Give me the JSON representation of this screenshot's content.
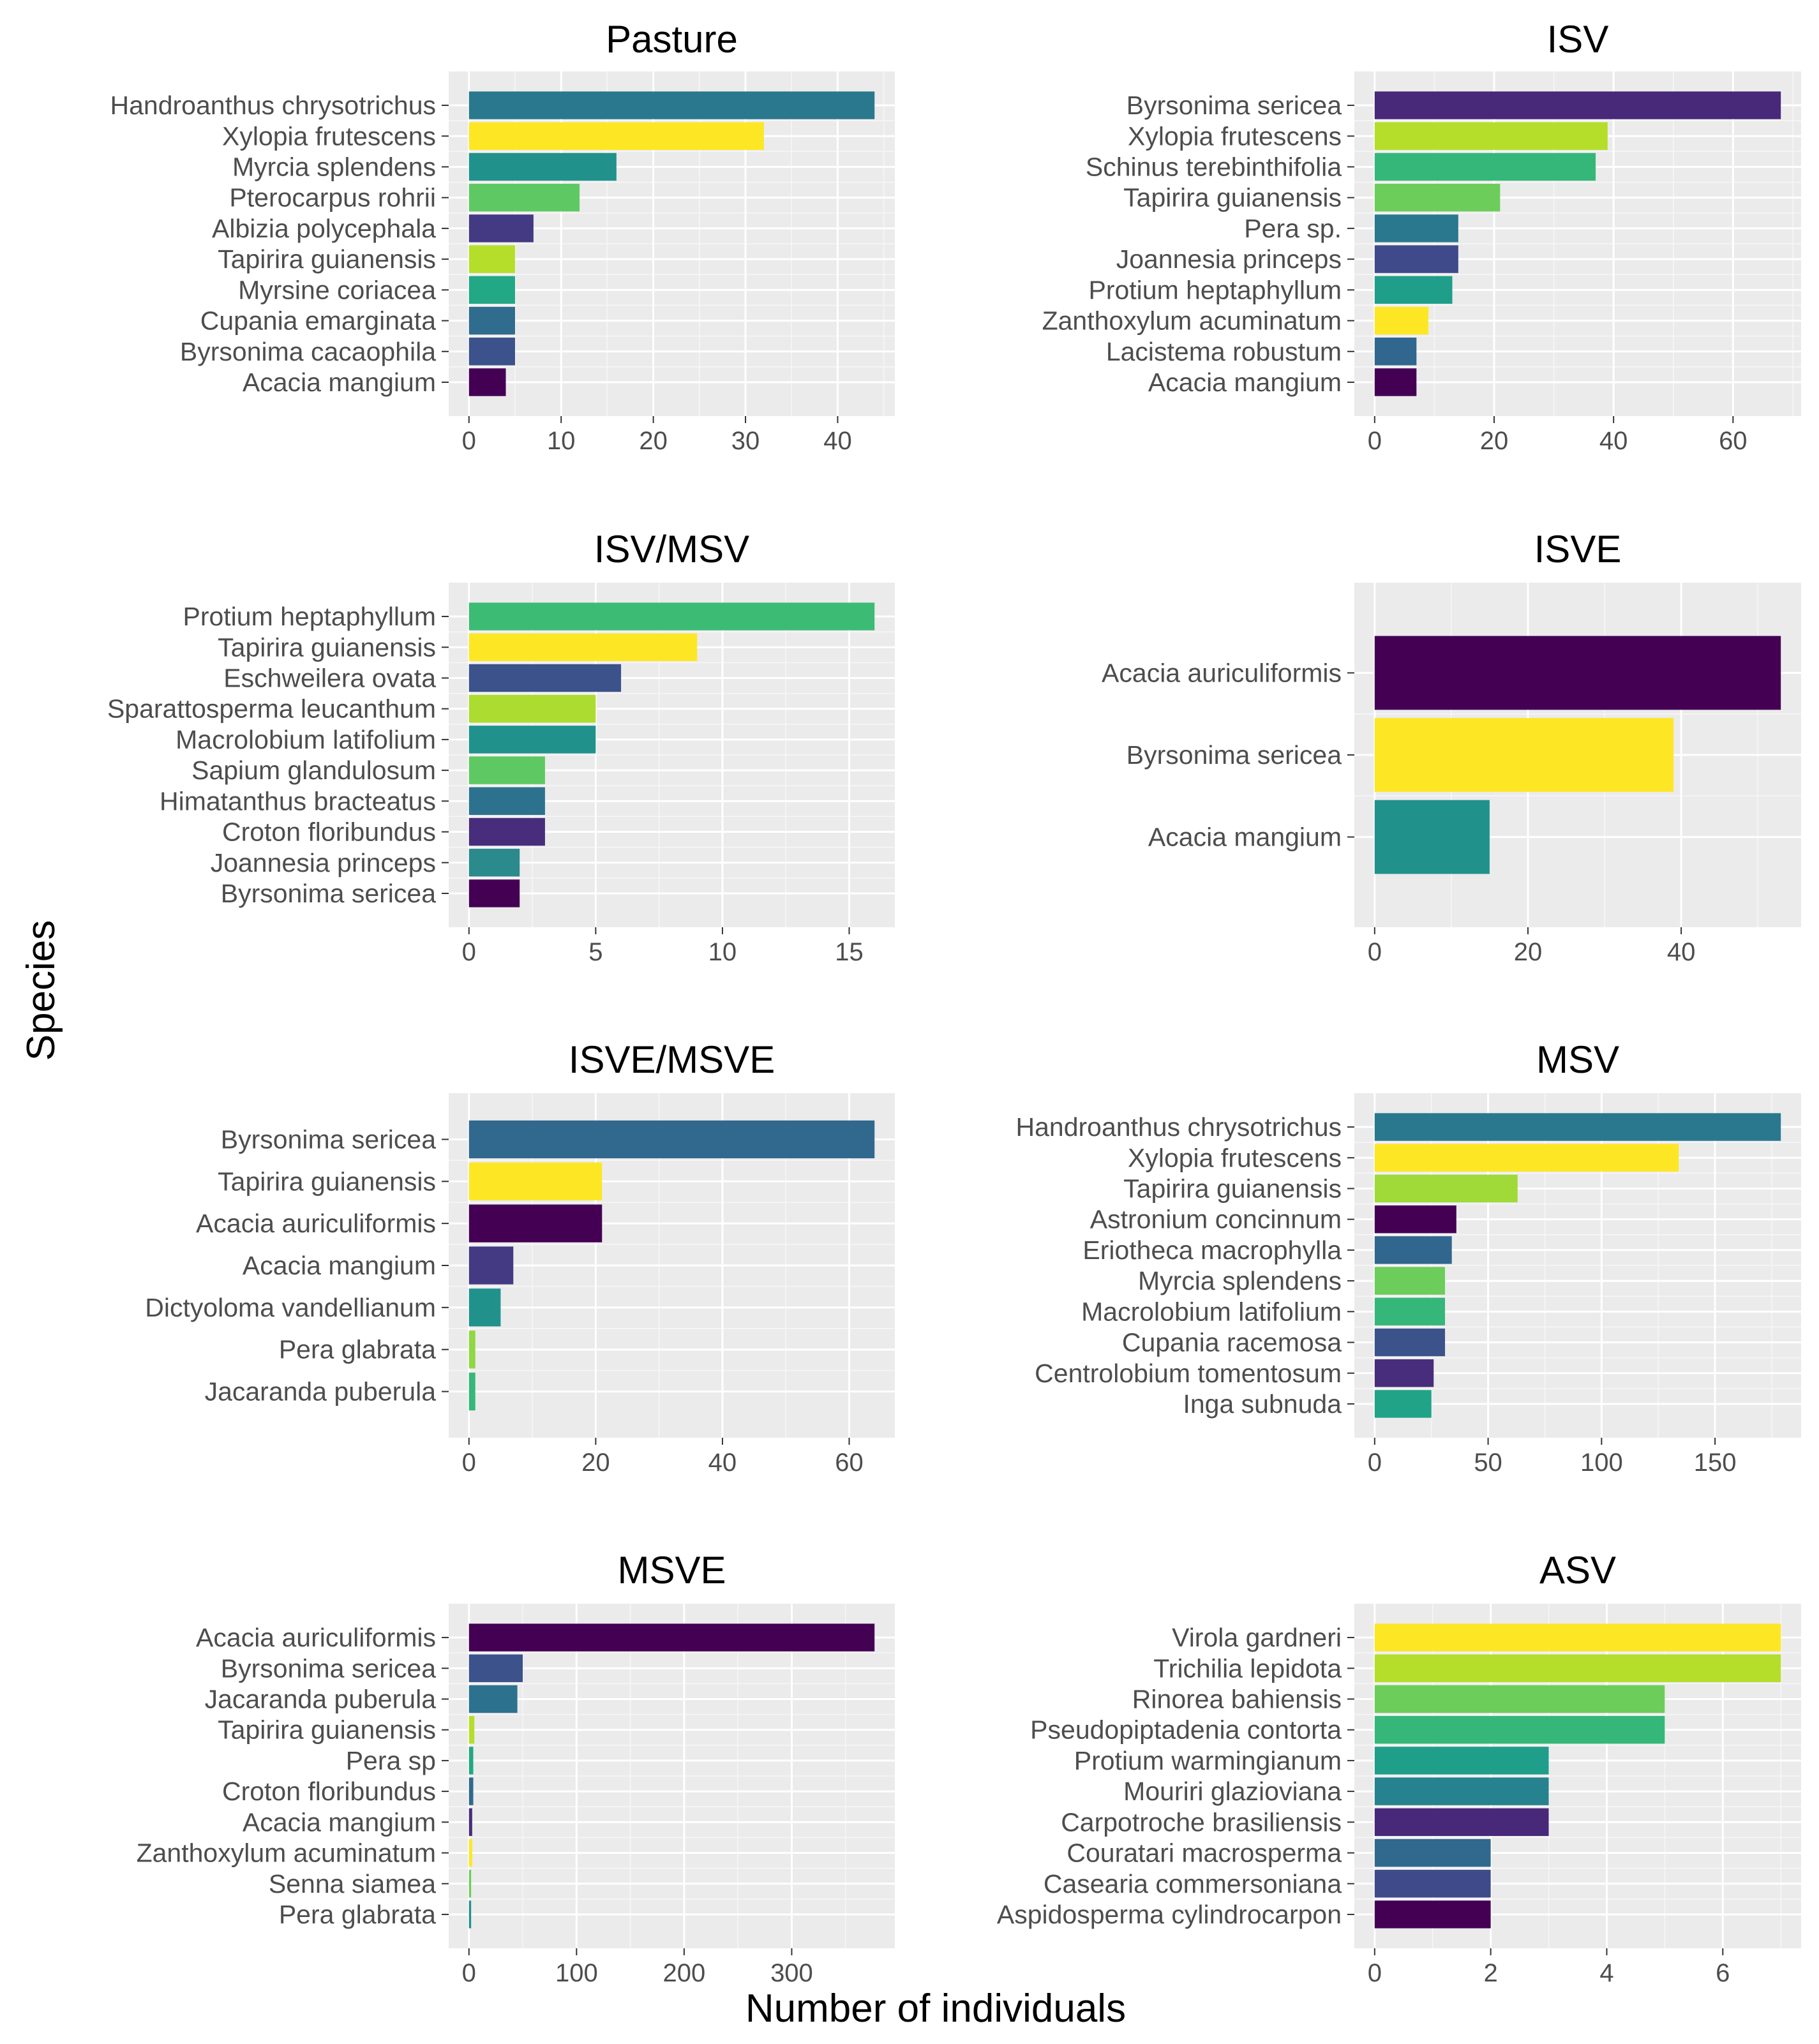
{
  "chart_data": [
    {
      "type": "bar",
      "orientation": "horizontal",
      "title": "Pasture",
      "categories": [
        "Handroanthus chrysotrichus",
        "Xylopia frutescens",
        "Myrcia splendens",
        "Pterocarpus rohrii",
        "Albizia polycephala",
        "Tapirira guianensis",
        "Myrsine coriacea",
        "Cupania emarginata",
        "Byrsonima cacaophila",
        "Acacia mangium"
      ],
      "values": [
        44,
        32,
        16,
        12,
        7,
        5,
        5,
        5,
        5,
        4
      ],
      "colors": [
        "#2a788e",
        "#fde725",
        "#21918c",
        "#5ec962",
        "#443983",
        "#b5de2b",
        "#22a884",
        "#2f6c8e",
        "#3b528b",
        "#440154"
      ],
      "xlim": [
        -2.2,
        46.2
      ],
      "xticks": [
        0,
        10,
        20,
        30,
        40
      ]
    },
    {
      "type": "bar",
      "orientation": "horizontal",
      "title": "ISV",
      "categories": [
        "Byrsonima sericea",
        "Xylopia frutescens",
        "Schinus terebinthifolia",
        "Tapirira guianensis",
        "Pera sp.",
        "Joannesia princeps",
        "Protium heptaphyllum",
        "Zanthoxylum acuminatum",
        "Lacistema robustum",
        "Acacia mangium"
      ],
      "values": [
        68,
        39,
        37,
        21,
        14,
        14,
        13,
        9,
        7,
        7
      ],
      "colors": [
        "#482878",
        "#b5de2b",
        "#35b779",
        "#6ccd5a",
        "#2a788e",
        "#3e4a89",
        "#1f9e89",
        "#fde725",
        "#31668e",
        "#440154"
      ],
      "xlim": [
        -3.4,
        71.4
      ],
      "xticks": [
        0,
        20,
        40,
        60
      ]
    },
    {
      "type": "bar",
      "orientation": "horizontal",
      "title": "ISV/MSV",
      "categories": [
        "Protium heptaphyllum",
        "Tapirira guianensis",
        "Eschweilera ovata",
        "Sparattosperma leucanthum",
        "Macrolobium latifolium",
        "Sapium glandulosum",
        "Himatanthus bracteatus",
        "Croton floribundus",
        "Joannesia princeps",
        "Byrsonima sericea"
      ],
      "values": [
        16,
        9,
        6,
        5,
        5,
        3,
        3,
        3,
        2,
        2
      ],
      "colors": [
        "#3cbb75",
        "#fde725",
        "#3b528b",
        "#addc30",
        "#21918c",
        "#5ec962",
        "#2c728e",
        "#472d7b",
        "#2a8a8c",
        "#440154"
      ],
      "xlim": [
        -0.8,
        16.8
      ],
      "xticks": [
        0,
        5,
        10,
        15
      ]
    },
    {
      "type": "bar",
      "orientation": "horizontal",
      "title": "ISVE",
      "categories": [
        "Acacia auriculiformis",
        "Byrsonima sericea",
        "Acacia mangium"
      ],
      "values": [
        53,
        39,
        15
      ],
      "colors": [
        "#440154",
        "#fde725",
        "#21918c"
      ],
      "xlim": [
        -2.65,
        55.65
      ],
      "xticks": [
        0,
        20,
        40
      ]
    },
    {
      "type": "bar",
      "orientation": "horizontal",
      "title": "ISVE/MSVE",
      "categories": [
        "Byrsonima sericea",
        "Tapirira guianensis",
        "Acacia auriculiformis",
        "Acacia mangium",
        "Dictyoloma vandellianum",
        "Pera glabrata",
        "Jacaranda puberula"
      ],
      "values": [
        64,
        21,
        21,
        7,
        5,
        1,
        1
      ],
      "colors": [
        "#31688e",
        "#fde725",
        "#440154",
        "#443a83",
        "#21918c",
        "#90d743",
        "#35b779"
      ],
      "xlim": [
        -3.2,
        67.2
      ],
      "xticks": [
        0,
        20,
        40,
        60
      ]
    },
    {
      "type": "bar",
      "orientation": "horizontal",
      "title": "MSV",
      "categories": [
        "Handroanthus chrysotrichus",
        "Xylopia frutescens",
        "Tapirira guianensis",
        "Astronium concinnum",
        "Eriotheca macrophylla",
        "Myrcia splendens",
        "Macrolobium latifolium",
        "Cupania racemosa",
        "Centrolobium tomentosum",
        "Inga subnuda"
      ],
      "values": [
        179,
        134,
        63,
        36,
        34,
        31,
        31,
        31,
        26,
        25
      ],
      "colors": [
        "#2a788e",
        "#fde725",
        "#a0da39",
        "#440154",
        "#31668e",
        "#6ccd5a",
        "#35b779",
        "#3b528b",
        "#472d7b",
        "#20a386"
      ],
      "xlim": [
        -8.95,
        187.95
      ],
      "xticks": [
        0,
        50,
        100,
        150
      ]
    },
    {
      "type": "bar",
      "orientation": "horizontal",
      "title": "MSVE",
      "categories": [
        "Acacia auriculiformis",
        "Byrsonima sericea",
        "Jacaranda puberula",
        "Tapirira guianensis",
        "Pera sp",
        "Croton floribundus",
        "Acacia mangium",
        "Zanthoxylum acuminatum",
        "Senna siamea",
        "Pera glabrata"
      ],
      "values": [
        377,
        50,
        45,
        5,
        4,
        4,
        3,
        3,
        2,
        2
      ],
      "colors": [
        "#440154",
        "#3b528b",
        "#2c728e",
        "#b5de2b",
        "#22a884",
        "#31688e",
        "#472d7b",
        "#fde725",
        "#6ccd5a",
        "#21918c"
      ],
      "xlim": [
        -18.85,
        395.85
      ],
      "xticks": [
        0,
        100,
        200,
        300
      ]
    },
    {
      "type": "bar",
      "orientation": "horizontal",
      "title": "ASV",
      "categories": [
        "Virola gardneri",
        "Trichilia lepidota",
        "Rinorea bahiensis",
        "Pseudopiptadenia contorta",
        "Protium warmingianum",
        "Mouriri glazioviana",
        "Carpotroche brasiliensis",
        "Couratari macrosperma",
        "Casearia commersoniana",
        "Aspidosperma cylindrocarpon"
      ],
      "values": [
        7,
        7,
        5,
        5,
        3,
        3,
        3,
        2,
        2,
        2
      ],
      "colors": [
        "#fde725",
        "#b5de2b",
        "#6ccd5a",
        "#35b779",
        "#1f9e89",
        "#26828e",
        "#482878",
        "#31688e",
        "#3e4a89",
        "#440154"
      ],
      "xlim": [
        -0.35,
        7.35
      ],
      "xticks": [
        0,
        2,
        4,
        6
      ]
    }
  ],
  "axis_labels": {
    "x": "Number of individuals",
    "y": "Species"
  }
}
